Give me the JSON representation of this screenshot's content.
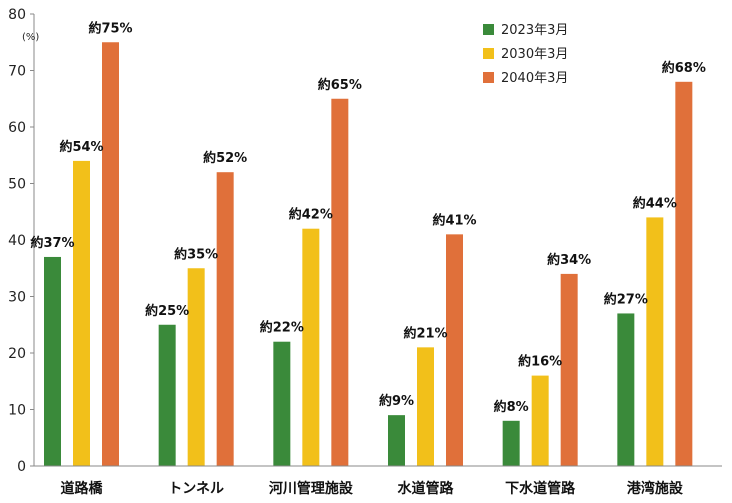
{
  "chart_data": {
    "type": "bar",
    "ylabel": "(%)",
    "ylim": [
      0,
      80
    ],
    "yticks": [
      0,
      10,
      20,
      30,
      40,
      50,
      60,
      70,
      80
    ],
    "grid": false,
    "legend_position": "top-right",
    "categories": [
      "道路橋",
      "トンネル",
      "河川管理施設",
      "水道管路",
      "下水道管路",
      "港湾施設"
    ],
    "series": [
      {
        "name": "2023年3月",
        "color": "#3a8a3a",
        "values": [
          37,
          25,
          22,
          9,
          8,
          27
        ],
        "labels": [
          "約37%",
          "約25%",
          "約22%",
          "約9%",
          "約8%",
          "約27%"
        ]
      },
      {
        "name": "2030年3月",
        "color": "#f2c01a",
        "values": [
          54,
          35,
          42,
          21,
          16,
          44
        ],
        "labels": [
          "約54%",
          "約35%",
          "約42%",
          "約21%",
          "約16%",
          "約44%"
        ]
      },
      {
        "name": "2040年3月",
        "color": "#e0703a",
        "values": [
          75,
          52,
          65,
          41,
          34,
          68
        ],
        "labels": [
          "約75%",
          "約52%",
          "約65%",
          "約41%",
          "約34%",
          "約68%"
        ]
      }
    ]
  }
}
